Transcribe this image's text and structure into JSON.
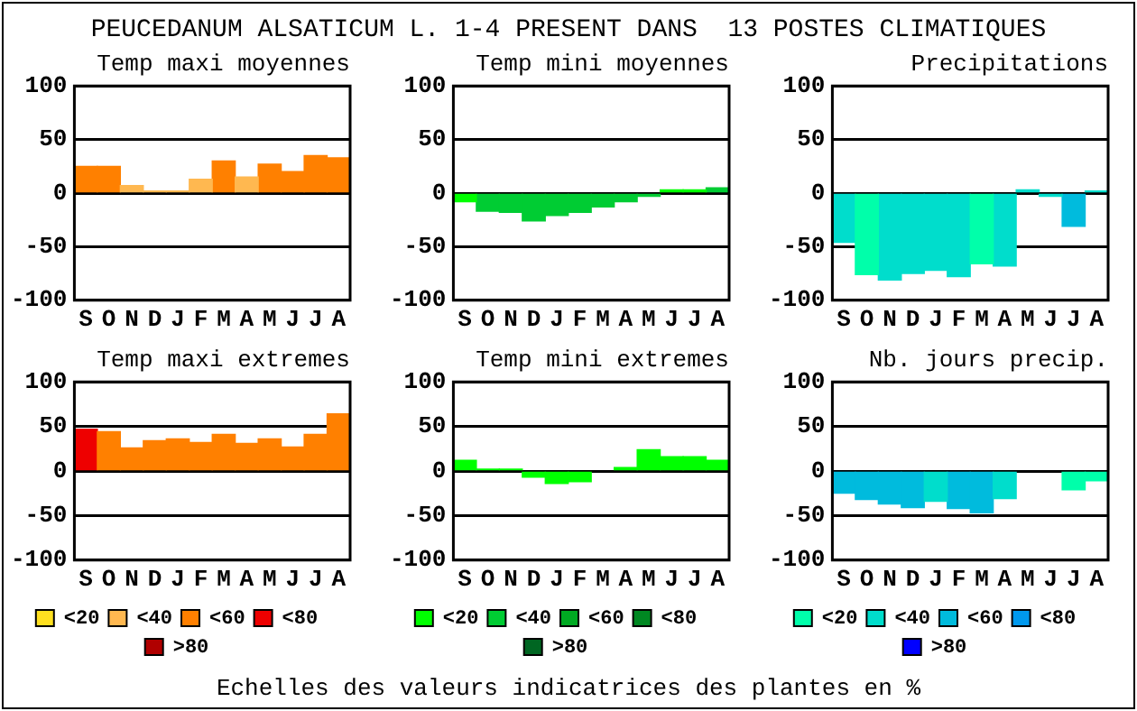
{
  "chart_data": [
    {
      "type": "bar",
      "title": "Temp maxi moyennes",
      "categories": [
        "S",
        "O",
        "N",
        "D",
        "J",
        "F",
        "M",
        "A",
        "M",
        "J",
        "J",
        "A"
      ],
      "stacked": true,
      "grid": "y",
      "ylim": [
        -100,
        100
      ],
      "yticks": [
        -100,
        -50,
        0,
        50,
        100
      ],
      "series": [
        {
          "color": "#ffb850",
          "values": [
            null,
            null,
            7,
            2,
            2,
            13,
            null,
            15,
            null,
            null,
            null,
            null
          ]
        },
        {
          "color": "#ff8000",
          "values": [
            25,
            25,
            null,
            null,
            null,
            null,
            30,
            null,
            27,
            20,
            35,
            33
          ]
        }
      ]
    },
    {
      "type": "bar",
      "title": "Temp mini moyennes",
      "categories": [
        "S",
        "O",
        "N",
        "D",
        "J",
        "F",
        "M",
        "A",
        "M",
        "J",
        "J",
        "A"
      ],
      "stacked": true,
      "grid": "y",
      "ylim": [
        -100,
        100
      ],
      "yticks": [
        -100,
        -50,
        0,
        50,
        100
      ],
      "series": [
        {
          "color": "#00ff00",
          "values": [
            -8,
            null,
            null,
            null,
            null,
            null,
            null,
            null,
            null,
            3,
            3,
            null
          ]
        },
        {
          "color": "#00cc33",
          "values": [
            null,
            -17,
            -18,
            -26,
            -21,
            -18,
            -13,
            -8,
            -3,
            null,
            null,
            5
          ]
        }
      ]
    },
    {
      "type": "bar",
      "title": "Precipitations",
      "categories": [
        "S",
        "O",
        "N",
        "D",
        "J",
        "F",
        "M",
        "A",
        "M",
        "J",
        "J",
        "A"
      ],
      "stacked": true,
      "grid": "y",
      "ylim": [
        -100,
        100
      ],
      "yticks": [
        -100,
        -50,
        0,
        50,
        100
      ],
      "series": [
        {
          "color": "#00ffaa",
          "values": [
            null,
            -76,
            null,
            null,
            null,
            null,
            -66,
            null,
            null,
            null,
            null,
            null
          ]
        },
        {
          "color": "#00ddcc",
          "values": [
            -46,
            null,
            -81,
            -75,
            -72,
            -78,
            null,
            -68,
            3,
            -3,
            null,
            2
          ]
        },
        {
          "color": "#00bbdd",
          "values": [
            null,
            null,
            null,
            null,
            null,
            null,
            null,
            null,
            null,
            null,
            -31,
            null
          ]
        }
      ]
    },
    {
      "type": "bar",
      "title": "Temp maxi extremes",
      "categories": [
        "S",
        "O",
        "N",
        "D",
        "J",
        "F",
        "M",
        "A",
        "M",
        "J",
        "J",
        "A"
      ],
      "stacked": true,
      "grid": "y",
      "legend": "bottom",
      "ylim": [
        -100,
        100
      ],
      "yticks": [
        -100,
        -50,
        0,
        50,
        100
      ],
      "series": [
        {
          "name": "<20",
          "color": "#ffe020",
          "values": [
            null,
            null,
            null,
            null,
            null,
            null,
            null,
            null,
            null,
            null,
            null,
            null
          ]
        },
        {
          "name": "<40",
          "color": "#ffb850",
          "values": [
            null,
            null,
            null,
            null,
            null,
            null,
            null,
            null,
            null,
            null,
            null,
            null
          ]
        },
        {
          "name": "<60",
          "color": "#ff8000",
          "values": [
            null,
            44,
            26,
            34,
            36,
            32,
            41,
            31,
            36,
            27,
            41,
            64
          ]
        },
        {
          "name": "<80",
          "color": "#ee0000",
          "values": [
            47,
            null,
            null,
            null,
            null,
            null,
            null,
            null,
            null,
            null,
            null,
            null
          ]
        },
        {
          "name": ">80",
          "color": "#b00000",
          "values": [
            null,
            null,
            null,
            null,
            null,
            null,
            null,
            null,
            null,
            null,
            null,
            null
          ]
        }
      ]
    },
    {
      "type": "bar",
      "title": "Temp mini extremes",
      "categories": [
        "S",
        "O",
        "N",
        "D",
        "J",
        "F",
        "M",
        "A",
        "M",
        "J",
        "J",
        "A"
      ],
      "stacked": true,
      "grid": "y",
      "legend": "bottom",
      "ylim": [
        -100,
        100
      ],
      "yticks": [
        -100,
        -50,
        0,
        50,
        100
      ],
      "series": [
        {
          "name": "<20",
          "color": "#00ff00",
          "values": [
            12,
            2,
            2,
            -7,
            -14,
            -12,
            null,
            4,
            24,
            16,
            16,
            12
          ]
        },
        {
          "name": "<40",
          "color": "#00cc33",
          "values": [
            null,
            null,
            null,
            null,
            null,
            null,
            null,
            null,
            null,
            null,
            null,
            null
          ]
        },
        {
          "name": "<60",
          "color": "#00aa22",
          "values": [
            null,
            null,
            null,
            null,
            null,
            null,
            null,
            null,
            null,
            null,
            null,
            null
          ]
        },
        {
          "name": "<80",
          "color": "#008822",
          "values": [
            null,
            null,
            null,
            null,
            null,
            null,
            null,
            null,
            null,
            null,
            null,
            null
          ]
        },
        {
          "name": ">80",
          "color": "#006622",
          "values": [
            null,
            null,
            null,
            null,
            null,
            null,
            null,
            null,
            null,
            null,
            null,
            null
          ]
        }
      ]
    },
    {
      "type": "bar",
      "title": "Nb. jours precip.",
      "categories": [
        "S",
        "O",
        "N",
        "D",
        "J",
        "F",
        "M",
        "A",
        "M",
        "J",
        "J",
        "A"
      ],
      "stacked": true,
      "grid": "y",
      "legend": "bottom",
      "ylim": [
        -100,
        100
      ],
      "yticks": [
        -100,
        -50,
        0,
        50,
        100
      ],
      "series": [
        {
          "name": "<20",
          "color": "#00ffaa",
          "values": [
            null,
            null,
            null,
            null,
            null,
            null,
            null,
            null,
            null,
            null,
            -21,
            -11
          ]
        },
        {
          "name": "<40",
          "color": "#00ddcc",
          "values": [
            null,
            null,
            null,
            null,
            -34,
            null,
            null,
            -31,
            null,
            null,
            null,
            null
          ]
        },
        {
          "name": "<60",
          "color": "#00bbdd",
          "values": [
            -25,
            -32,
            -37,
            -41,
            null,
            -42,
            -47,
            null,
            null,
            null,
            null,
            null
          ]
        },
        {
          "name": "<80",
          "color": "#0099ee",
          "values": [
            null,
            null,
            null,
            null,
            null,
            null,
            null,
            null,
            null,
            null,
            null,
            null
          ]
        },
        {
          "name": ">80",
          "color": "#0000ff",
          "values": [
            null,
            null,
            null,
            null,
            null,
            null,
            null,
            null,
            null,
            null,
            null,
            null
          ]
        }
      ]
    },
    {
      "type": "other",
      "title": "PEUCEDANUM ALSATICUM L. 1-4 PRESENT DANS  13 POSTES CLIMATIQUES",
      "annotations": [
        "Echelles des valeurs indicatrices des plantes en %"
      ]
    }
  ]
}
